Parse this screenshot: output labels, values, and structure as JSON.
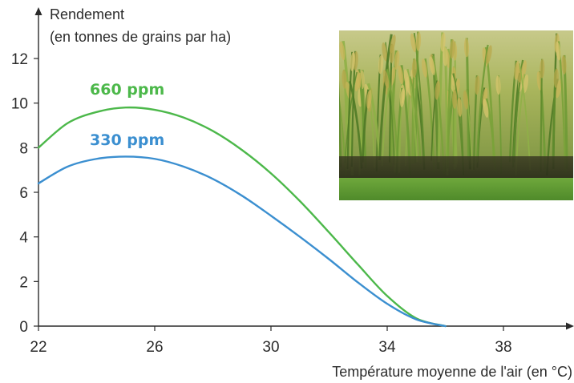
{
  "chart_data": {
    "type": "line",
    "ylabel_line1": "Rendement",
    "ylabel_line2": "(en tonnes de grains par ha)",
    "xlabel": "Température moyenne de l'air (en °C)",
    "xlim": [
      22,
      40
    ],
    "ylim": [
      0,
      13
    ],
    "x_ticks": [
      22,
      26,
      30,
      34,
      38
    ],
    "y_ticks": [
      0,
      2,
      4,
      6,
      8,
      10,
      12
    ],
    "grid": false,
    "series": [
      {
        "name": "660 ppm",
        "color": "#4cb84a",
        "x": [
          22,
          23,
          24,
          25,
          26,
          27,
          28,
          29,
          30,
          31,
          32,
          33,
          34,
          35,
          36
        ],
        "y": [
          8.0,
          9.1,
          9.6,
          9.8,
          9.7,
          9.35,
          8.75,
          7.9,
          6.85,
          5.6,
          4.2,
          2.75,
          1.35,
          0.35,
          0.0
        ]
      },
      {
        "name": "330 ppm",
        "color": "#3b8fd0",
        "x": [
          22,
          23,
          24,
          25,
          26,
          27,
          28,
          29,
          30,
          31,
          32,
          33,
          34,
          35,
          36
        ],
        "y": [
          6.4,
          7.15,
          7.5,
          7.6,
          7.5,
          7.15,
          6.6,
          5.85,
          4.95,
          4.0,
          3.0,
          1.95,
          1.0,
          0.3,
          0.0
        ]
      }
    ]
  },
  "photo": {
    "icon": "rice-field-photo"
  }
}
